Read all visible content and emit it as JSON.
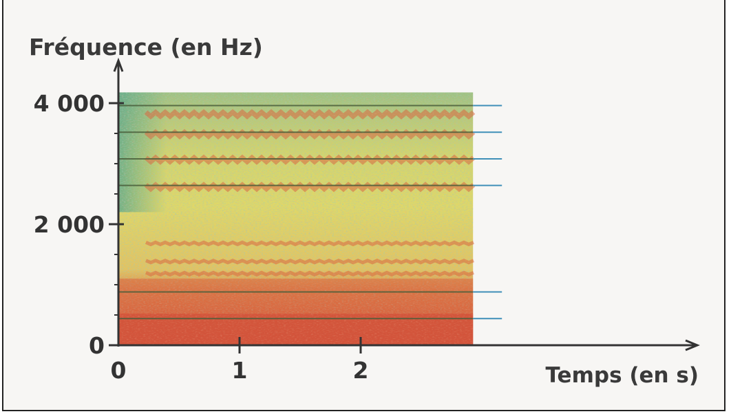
{
  "chart_data": {
    "type": "heatmap",
    "chart_kind": "spectrogram",
    "ylabel": "Fréquence (en Hz)",
    "xlabel": "Temps (en s)",
    "x_ticks": [
      "0",
      "1",
      "2"
    ],
    "y_ticks": [
      "0",
      "2 000",
      "4 000"
    ],
    "x_tick_values": [
      0,
      1,
      2
    ],
    "y_tick_values": [
      0,
      2000,
      4000
    ],
    "xlim": [
      0,
      4.7
    ],
    "ylim": [
      0,
      4500
    ],
    "signal_time_range": [
      0,
      2.95
    ],
    "signal_freq_max": 4200,
    "harmonic_lines_hz": [
      440,
      880,
      2640,
      3080,
      3520,
      3960
    ],
    "colors": {
      "low": "#5fa98a",
      "mid": "#e0d768",
      "high": "#d2503a",
      "harmonic_line": "#3f8fb8"
    }
  }
}
